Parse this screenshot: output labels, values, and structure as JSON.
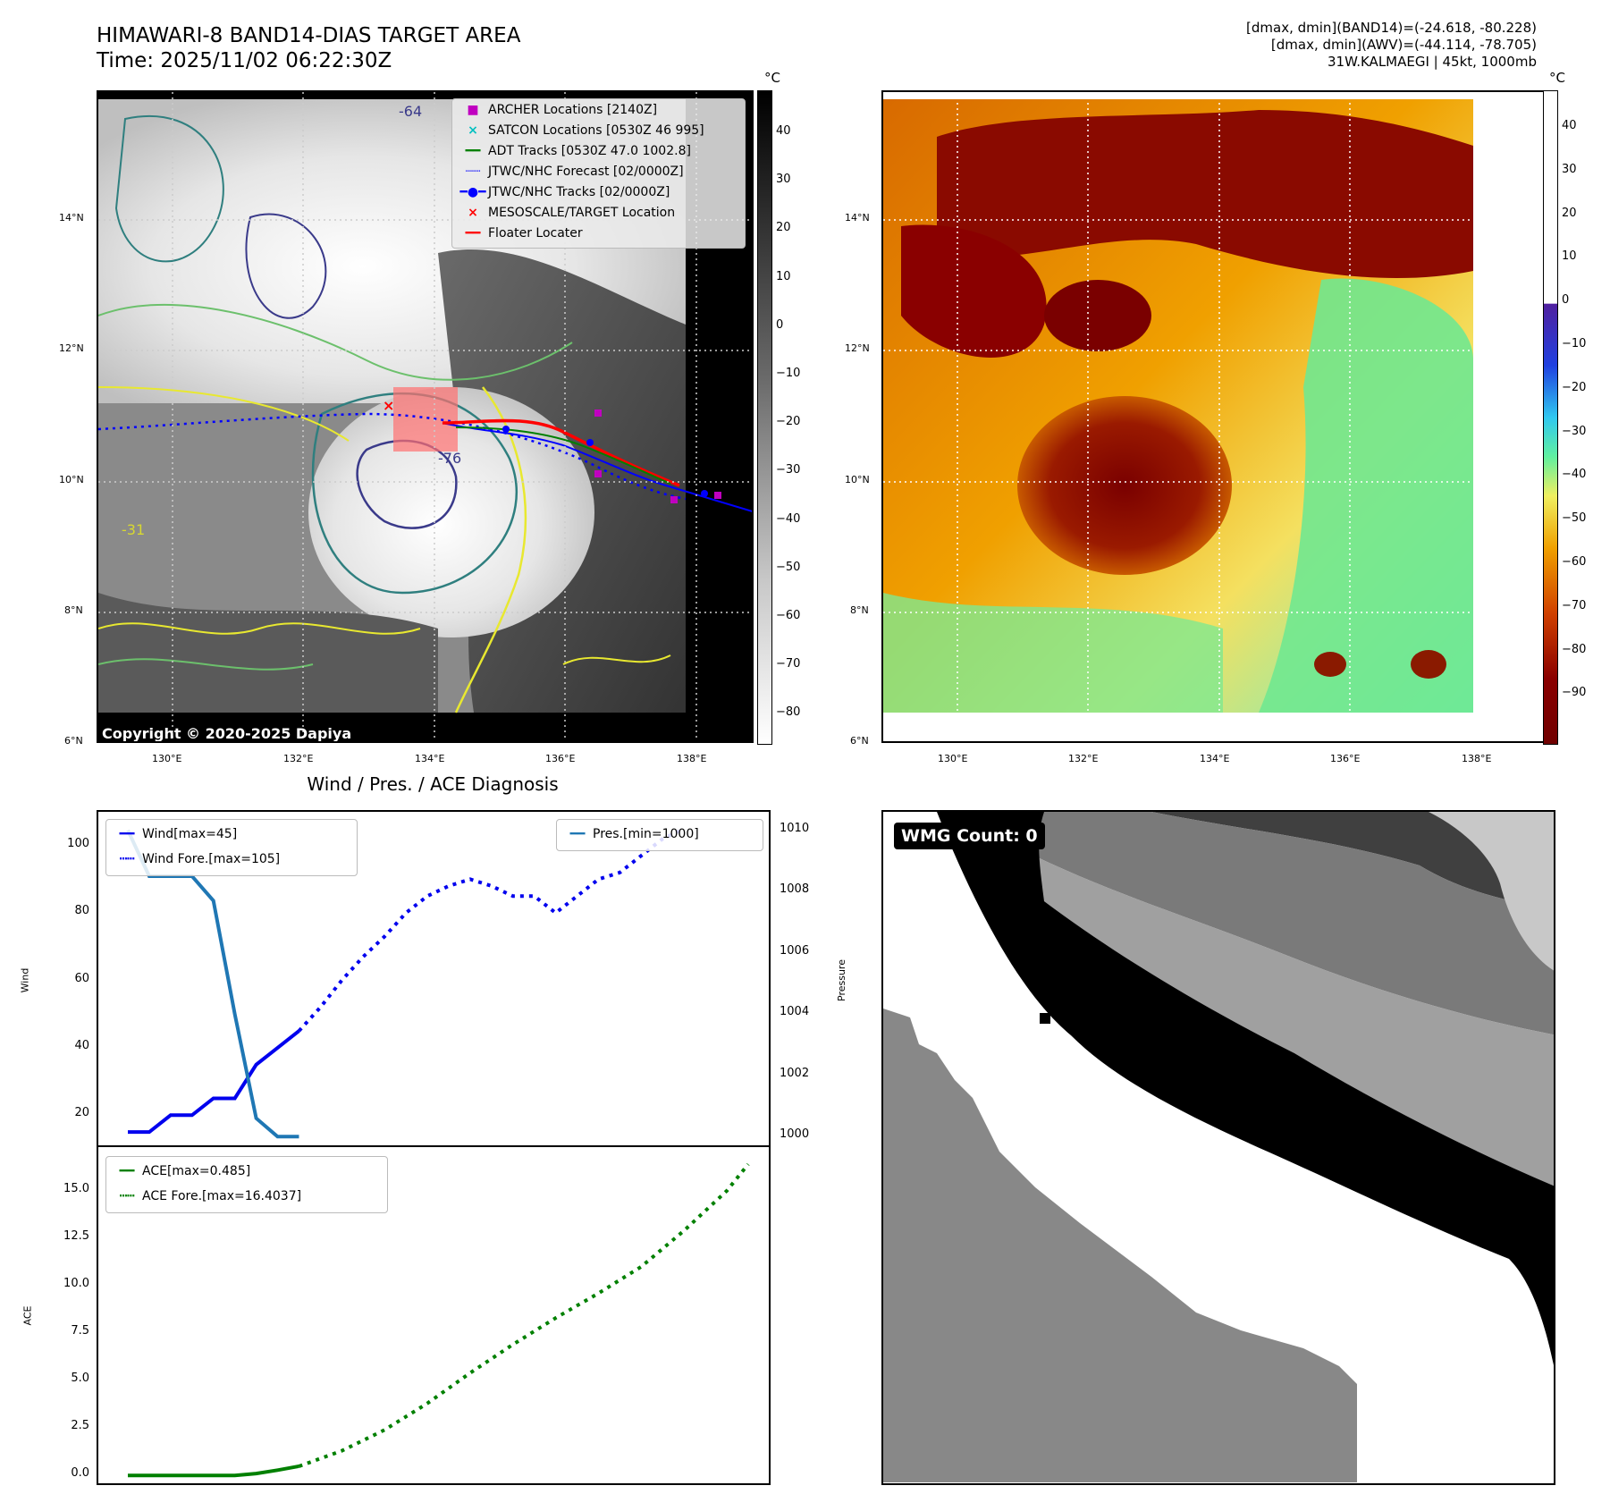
{
  "header": {
    "title_line1": "HIMAWARI-8 BAND14-DIAS TARGET AREA",
    "title_line2": "Time: 2025/11/02 06:22:30Z",
    "info_line1": "[dmax, dmin](BAND14)=(-24.618, -80.228)",
    "info_line2": "[dmax, dmin](AWV)=(-44.114, -78.705)",
    "info_line3": "31W.KALMAEGI | 45kt, 1000mb"
  },
  "map_axes": {
    "lon_labels": [
      "130°E",
      "132°E",
      "134°E",
      "136°E",
      "138°E"
    ],
    "lat_labels": [
      "14°N",
      "12°N",
      "10°N",
      "8°N",
      "6°N"
    ],
    "copyright": "Copyright © 2020-2025 Dapiya",
    "contour_labels": [
      "-64",
      "-76",
      "-31"
    ]
  },
  "ir_colorbar": {
    "unit": "°C",
    "ticks": [
      "40",
      "30",
      "20",
      "10",
      "0",
      "−10",
      "−20",
      "−30",
      "−40",
      "−50",
      "−60",
      "−70",
      "−80"
    ]
  },
  "awv_colorbar": {
    "unit": "°C",
    "ticks": [
      "40",
      "30",
      "20",
      "10",
      "0",
      "−10",
      "−20",
      "−30",
      "−40",
      "−50",
      "−60",
      "−70",
      "−80",
      "−90"
    ]
  },
  "map_legend": [
    {
      "label": "ARCHER Locations [2140Z]",
      "color": "#c000c0",
      "symbol": "square"
    },
    {
      "label": "SATCON Locations [0530Z 46 995]",
      "color": "#00c0c0",
      "symbol": "x"
    },
    {
      "label": "ADT Tracks [0530Z 47.0 1002.8]",
      "color": "#008000",
      "symbol": "line"
    },
    {
      "label": "JTWC/NHC Forecast [02/0000Z]",
      "color": "#0000ff",
      "symbol": "dotted"
    },
    {
      "label": "JTWC/NHC Tracks [02/0000Z]",
      "color": "#0000ff",
      "symbol": "line-dot"
    },
    {
      "label": "MESOSCALE/TARGET Location",
      "color": "#ff0000",
      "symbol": "x"
    },
    {
      "label": "Floater Locater",
      "color": "#ff0000",
      "symbol": "line"
    }
  ],
  "wmg": {
    "label": "WMG Count: 0"
  },
  "chart_data": [
    {
      "type": "line",
      "title": "Wind / Pres. / ACE Diagnosis",
      "ylabel": "Wind",
      "y2label": "Pressure",
      "ylim": [
        10,
        110
      ],
      "y2lim": [
        999.6,
        1010.6
      ],
      "yticks": [
        20,
        40,
        60,
        80,
        100
      ],
      "y2ticks": [
        1000,
        1002,
        1004,
        1006,
        1008,
        1010
      ],
      "x": [
        0,
        1,
        2,
        3,
        4,
        5,
        6,
        7,
        8,
        9,
        10,
        11,
        12,
        13,
        14,
        15,
        16,
        17,
        18,
        19,
        20,
        21,
        22,
        23,
        24,
        25,
        26,
        27,
        28,
        29
      ],
      "series": [
        {
          "name": "Wind[max=45]",
          "axis": "left",
          "style": "solid",
          "color": "#0000ee",
          "x": [
            0,
            1,
            2,
            3,
            4,
            5,
            6,
            7,
            8
          ],
          "values": [
            15,
            15,
            20,
            20,
            25,
            25,
            35,
            40,
            45
          ]
        },
        {
          "name": "Wind Fore.[max=105]",
          "axis": "left",
          "style": "dotted",
          "color": "#0000ee",
          "x": [
            8,
            9,
            10,
            11,
            12,
            13,
            14,
            15,
            16,
            17,
            18,
            19,
            20,
            21,
            22,
            23,
            24,
            25,
            26
          ],
          "values": [
            45,
            52,
            60,
            67,
            73,
            80,
            85,
            88,
            90,
            88,
            85,
            85,
            80,
            85,
            90,
            92,
            97,
            102,
            105
          ]
        },
        {
          "name": "Pres.[min=1000]",
          "axis": "right",
          "style": "solid",
          "color": "#1f77b4",
          "x": [
            0,
            1,
            2,
            3,
            4,
            5,
            6,
            7,
            8
          ],
          "values": [
            1010,
            1008.5,
            1008.5,
            1008.5,
            1007.7,
            1004,
            1000.6,
            1000,
            1000
          ]
        }
      ],
      "legend_left": [
        "Wind[max=45]",
        "Wind Fore.[max=105]"
      ],
      "legend_right": [
        "Pres.[min=1000]"
      ]
    },
    {
      "type": "line",
      "ylabel": "ACE",
      "ylim": [
        -0.6,
        17.3
      ],
      "yticks": [
        "0.0",
        "2.5",
        "5.0",
        "7.5",
        "10.0",
        "12.5",
        "15.0"
      ],
      "series": [
        {
          "name": "ACE[max=0.485]",
          "style": "solid",
          "color": "#008000",
          "x": [
            0,
            1,
            2,
            3,
            4,
            5,
            6,
            7,
            8
          ],
          "values": [
            0,
            0,
            0,
            0,
            0,
            0,
            0.1,
            0.28,
            0.485
          ]
        },
        {
          "name": "ACE Fore.[max=16.4037]",
          "style": "dotted",
          "color": "#008000",
          "x": [
            8,
            10,
            12,
            14,
            16,
            18,
            20,
            22,
            24,
            26,
            28,
            29
          ],
          "values": [
            0.485,
            1.3,
            2.4,
            3.8,
            5.4,
            6.9,
            8.3,
            9.6,
            11.0,
            12.9,
            15.0,
            16.4
          ]
        }
      ]
    }
  ]
}
